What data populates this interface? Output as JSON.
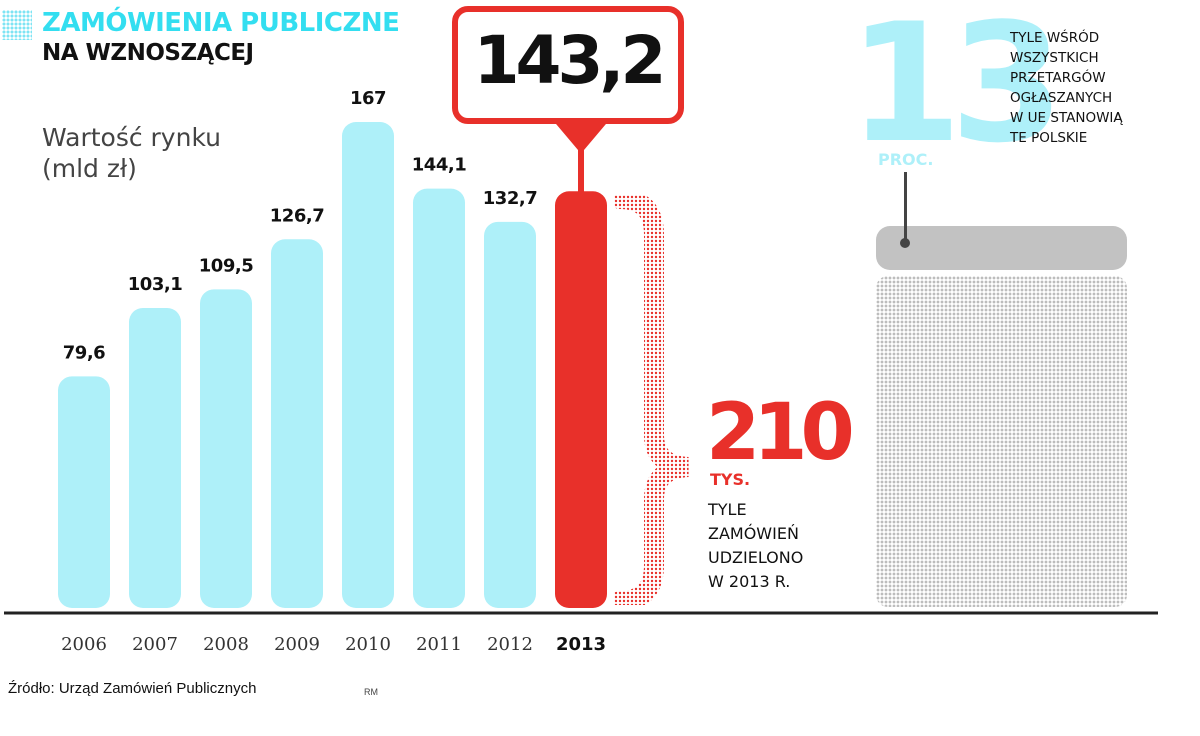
{
  "header": {
    "title_line1": "ZAMÓWIENIA PUBLICZNE",
    "title_line2": "NA WZNOSZĄCEJ"
  },
  "chart_data": {
    "type": "bar",
    "title": "ZAMÓWIENIA PUBLICZNE NA WZNOSZĄCEJ",
    "ylabel": "Wartość rynku (mld zł)",
    "categories": [
      "2006",
      "2007",
      "2008",
      "2009",
      "2010",
      "2011",
      "2012",
      "2013"
    ],
    "values": [
      79.6,
      103.1,
      109.5,
      126.7,
      167,
      144.1,
      132.7,
      143.2
    ],
    "labels": [
      "79,6",
      "103,1",
      "109,5",
      "126,7",
      "167",
      "144,1",
      "132,7",
      "143,2"
    ],
    "highlight_index": 7,
    "ylim": [
      0,
      175
    ],
    "grid": false,
    "colors": {
      "bar": "#aef0f9",
      "highlight": "#e8302a",
      "axis": "#222222"
    }
  },
  "unit_label_line1": "Wartość rynku",
  "unit_label_line2": "(mld zł)",
  "callout": {
    "value": "143,2",
    "color": "#e8302a"
  },
  "stat_orders": {
    "value": "210",
    "unit": "TYS.",
    "caption_lines": [
      "TYLE",
      "ZAMÓWIEŃ",
      "UDZIELONO",
      "W 2013 R."
    ],
    "color": "#e8302a"
  },
  "stat_share": {
    "value": "13",
    "unit": "PROC.",
    "caption_lines": [
      "TYLE WŚRÓD",
      "WSZYSTKICH",
      "PRZETARGÓW",
      "OGŁASZANYCH",
      "W UE STANOWIĄ",
      "TE POLSKIE"
    ],
    "color": "#aef0f9",
    "share_fraction": 0.13
  },
  "footer": {
    "source": "Źródło: Urząd Zamówień Publicznych",
    "credit": "RM"
  }
}
